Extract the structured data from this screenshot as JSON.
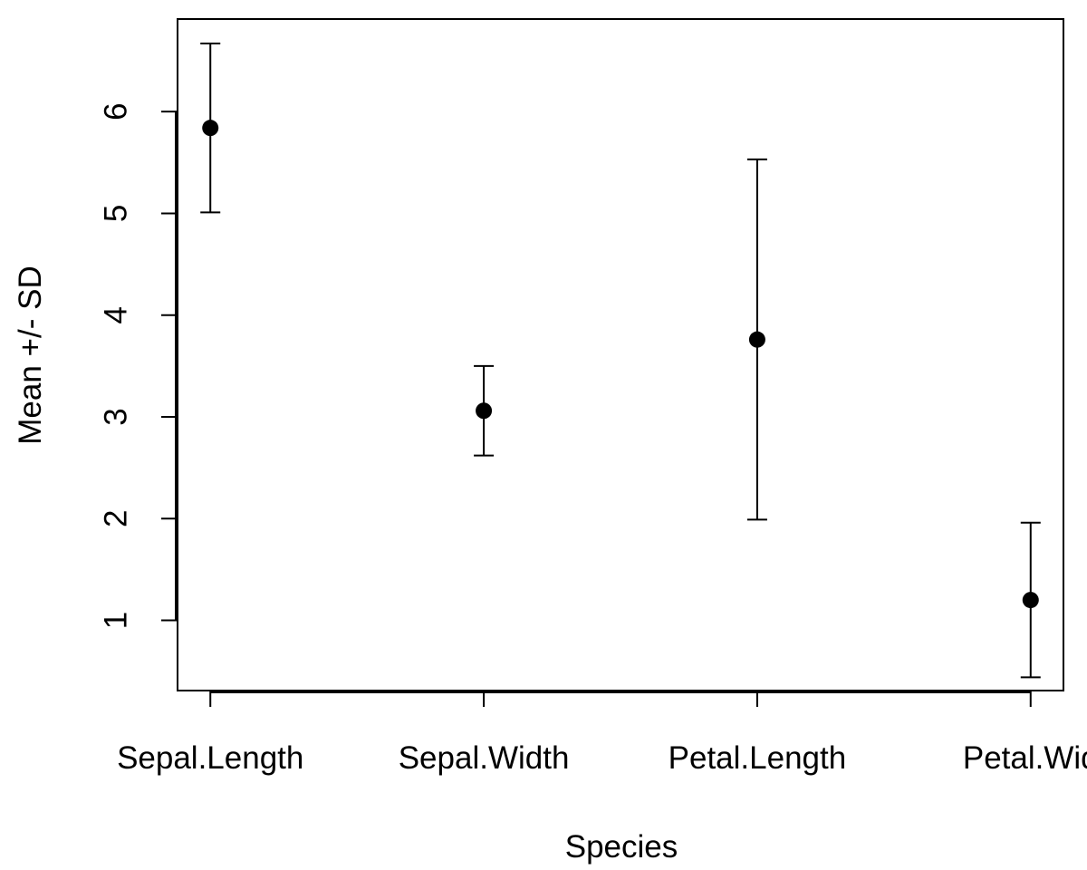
{
  "chart_data": {
    "type": "scatter",
    "title": "",
    "xlabel": "Species",
    "ylabel": "Mean +/- SD",
    "categories": [
      "Sepal.Length",
      "Sepal.Width",
      "Petal.Length",
      "Petal.Width"
    ],
    "x_tick_labels": [
      "Sepal.Length",
      "Sepal.Width",
      "Petal.Length",
      "Petal.Wid"
    ],
    "y_ticks": [
      1,
      2,
      3,
      4,
      5,
      6
    ],
    "y_tick_labels": [
      "1",
      "2",
      "3",
      "4",
      "5",
      "6"
    ],
    "ylim": [
      0.31,
      6.91
    ],
    "xlim": [
      0.88,
      4.12
    ],
    "grid": false,
    "series": [
      {
        "means": [
          5.84,
          3.06,
          3.76,
          1.2
        ],
        "sd": [
          0.83,
          0.44,
          1.77,
          0.76
        ]
      }
    ],
    "colors": {
      "marks": "#000000",
      "axes": "#000000",
      "background": "#ffffff"
    }
  }
}
